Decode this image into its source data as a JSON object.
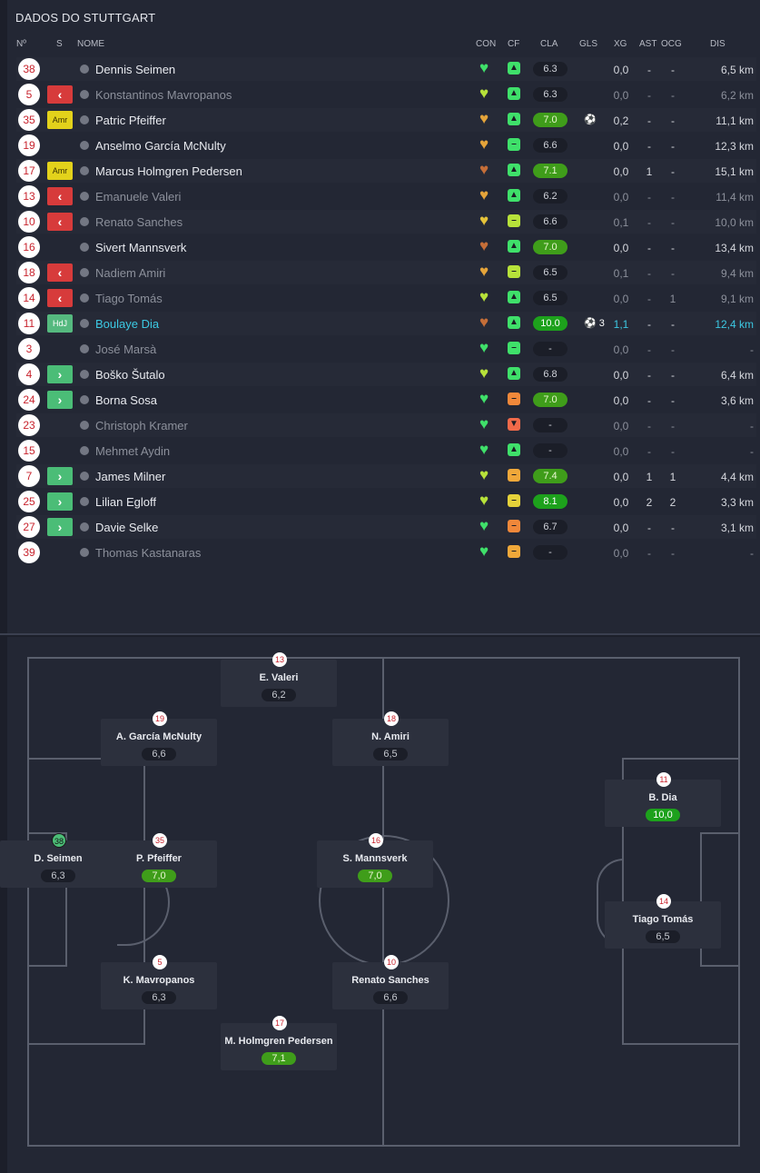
{
  "title": "DADOS DO STUTTGART",
  "headers": {
    "num": "Nº",
    "s": "S",
    "nome": "NOME",
    "con": "CON",
    "cf": "CF",
    "cla": "CLA",
    "gls": "GLS",
    "xg": "XG",
    "ast": "AST",
    "ocg": "OCG",
    "dis": "DIS"
  },
  "players": [
    {
      "num": "38",
      "status": "",
      "name": "Dennis Seimen",
      "con_color": "#3fe06a",
      "cf": "up",
      "cf_color": "#3fe06a",
      "cla": "6.3",
      "cla_style": "",
      "gls": "",
      "xg": "0,0",
      "ast": "-",
      "ocg": "-",
      "dis": "6,5 km",
      "dim": false,
      "hl": false
    },
    {
      "num": "5",
      "status": "out",
      "name": "Konstantinos Mavropanos",
      "con_color": "#b7e23a",
      "cf": "up",
      "cf_color": "#3fe06a",
      "cla": "6.3",
      "cla_style": "",
      "gls": "",
      "xg": "0,0",
      "ast": "-",
      "ocg": "-",
      "dis": "6,2 km",
      "dim": true,
      "hl": false
    },
    {
      "num": "35",
      "status": "yc",
      "status_text": "Amr",
      "name": "Patric Pfeiffer",
      "con_color": "#e5a43a",
      "cf": "up",
      "cf_color": "#3fe06a",
      "cla": "7.0",
      "cla_style": "good",
      "gls": "⚽",
      "xg": "0,2",
      "ast": "-",
      "ocg": "-",
      "dis": "11,1 km",
      "dim": false,
      "hl": false
    },
    {
      "num": "19",
      "status": "",
      "name": "Anselmo García McNulty",
      "con_color": "#e5a43a",
      "cf": "mid",
      "cf_color": "#3fe06a",
      "cla": "6.6",
      "cla_style": "",
      "gls": "",
      "xg": "0,0",
      "ast": "-",
      "ocg": "-",
      "dis": "12,3 km",
      "dim": false,
      "hl": false
    },
    {
      "num": "17",
      "status": "yc",
      "status_text": "Amr",
      "name": "Marcus Holmgren Pedersen",
      "con_color": "#c56e38",
      "cf": "up",
      "cf_color": "#3fe06a",
      "cla": "7.1",
      "cla_style": "good",
      "gls": "",
      "xg": "0,0",
      "ast": "1",
      "ocg": "-",
      "dis": "15,1 km",
      "dim": false,
      "hl": false
    },
    {
      "num": "13",
      "status": "out",
      "name": "Emanuele Valeri",
      "con_color": "#e5a43a",
      "cf": "up",
      "cf_color": "#3fe06a",
      "cla": "6.2",
      "cla_style": "",
      "gls": "",
      "xg": "0,0",
      "ast": "-",
      "ocg": "-",
      "dis": "11,4 km",
      "dim": true,
      "hl": false
    },
    {
      "num": "10",
      "status": "out",
      "name": "Renato Sanches",
      "con_color": "#e5c33a",
      "cf": "mid",
      "cf_color": "#b7e23a",
      "cla": "6.6",
      "cla_style": "",
      "gls": "",
      "xg": "0,1",
      "ast": "-",
      "ocg": "-",
      "dis": "10,0 km",
      "dim": true,
      "hl": false
    },
    {
      "num": "16",
      "status": "",
      "name": "Sivert Mannsverk",
      "con_color": "#c56e38",
      "cf": "up",
      "cf_color": "#3fe06a",
      "cla": "7.0",
      "cla_style": "good",
      "gls": "",
      "xg": "0,0",
      "ast": "-",
      "ocg": "-",
      "dis": "13,4 km",
      "dim": false,
      "hl": false
    },
    {
      "num": "18",
      "status": "out",
      "name": "Nadiem Amiri",
      "con_color": "#e5a43a",
      "cf": "mid",
      "cf_color": "#b7e23a",
      "cla": "6.5",
      "cla_style": "",
      "gls": "",
      "xg": "0,1",
      "ast": "-",
      "ocg": "-",
      "dis": "9,4 km",
      "dim": true,
      "hl": false
    },
    {
      "num": "14",
      "status": "out",
      "name": "Tiago Tomás",
      "con_color": "#b7e23a",
      "cf": "up",
      "cf_color": "#3fe06a",
      "cla": "6.5",
      "cla_style": "",
      "gls": "",
      "xg": "0,0",
      "ast": "-",
      "ocg": "1",
      "dis": "9,1 km",
      "dim": true,
      "hl": false
    },
    {
      "num": "11",
      "status": "hdj",
      "status_text": "HdJ",
      "name": "Boulaye Dia",
      "con_color": "#c56e38",
      "cf": "up",
      "cf_color": "#3fe06a",
      "cla": "10.0",
      "cla_style": "great",
      "gls": "⚽ 3",
      "xg": "1,1",
      "ast": "-",
      "ocg": "-",
      "dis": "12,4 km",
      "dim": false,
      "hl": true
    },
    {
      "num": "3",
      "status": "",
      "name": "José Marsà",
      "con_color": "#3fe06a",
      "cf": "mid",
      "cf_color": "#3fe06a",
      "cla": "-",
      "cla_style": "none",
      "gls": "",
      "xg": "0,0",
      "ast": "-",
      "ocg": "-",
      "dis": "-",
      "dim": true,
      "hl": false
    },
    {
      "num": "4",
      "status": "in",
      "name": "Boško Šutalo",
      "con_color": "#b7e23a",
      "cf": "up",
      "cf_color": "#3fe06a",
      "cla": "6.8",
      "cla_style": "",
      "gls": "",
      "xg": "0,0",
      "ast": "-",
      "ocg": "-",
      "dis": "6,4 km",
      "dim": false,
      "hl": false
    },
    {
      "num": "24",
      "status": "in",
      "name": "Borna Sosa",
      "con_color": "#3fe06a",
      "cf": "mid",
      "cf_color": "#f0883a",
      "cla": "7.0",
      "cla_style": "good",
      "gls": "",
      "xg": "0,0",
      "ast": "-",
      "ocg": "-",
      "dis": "3,6 km",
      "dim": false,
      "hl": false
    },
    {
      "num": "23",
      "status": "",
      "name": "Christoph Kramer",
      "con_color": "#3fe06a",
      "cf": "down",
      "cf_color": "#f06a4a",
      "cla": "-",
      "cla_style": "none",
      "gls": "",
      "xg": "0,0",
      "ast": "-",
      "ocg": "-",
      "dis": "-",
      "dim": true,
      "hl": false
    },
    {
      "num": "15",
      "status": "",
      "name": "Mehmet Aydin",
      "con_color": "#3fe06a",
      "cf": "up",
      "cf_color": "#3fe06a",
      "cla": "-",
      "cla_style": "none",
      "gls": "",
      "xg": "0,0",
      "ast": "-",
      "ocg": "-",
      "dis": "-",
      "dim": true,
      "hl": false
    },
    {
      "num": "7",
      "status": "in",
      "name": "James Milner",
      "con_color": "#b7e23a",
      "cf": "mid",
      "cf_color": "#f0a83a",
      "cla": "7.4",
      "cla_style": "good",
      "gls": "",
      "xg": "0,0",
      "ast": "1",
      "ocg": "1",
      "dis": "4,4 km",
      "dim": false,
      "hl": false
    },
    {
      "num": "25",
      "status": "in",
      "name": "Lilian Egloff",
      "con_color": "#b7e23a",
      "cf": "mid",
      "cf_color": "#e5d23a",
      "cla": "8.1",
      "cla_style": "great",
      "gls": "",
      "xg": "0,0",
      "ast": "2",
      "ocg": "2",
      "dis": "3,3 km",
      "dim": false,
      "hl": false
    },
    {
      "num": "27",
      "status": "in",
      "name": "Davie Selke",
      "con_color": "#3fe06a",
      "cf": "mid",
      "cf_color": "#f0883a",
      "cla": "6.7",
      "cla_style": "",
      "gls": "",
      "xg": "0,0",
      "ast": "-",
      "ocg": "-",
      "dis": "3,1 km",
      "dim": false,
      "hl": false
    },
    {
      "num": "39",
      "status": "",
      "name": "Thomas Kastanaras",
      "con_color": "#3fe06a",
      "cf": "mid",
      "cf_color": "#f0a83a",
      "cla": "-",
      "cla_style": "none",
      "gls": "",
      "xg": "0,0",
      "ast": "-",
      "ocg": "-",
      "dis": "-",
      "dim": true,
      "hl": false
    }
  ],
  "formation": [
    {
      "num": "13",
      "name": "E. Valeri",
      "rating": "6,2",
      "style": ""
    },
    {
      "num": "19",
      "name": "A. García McNulty",
      "rating": "6,6",
      "style": ""
    },
    {
      "num": "18",
      "name": "N. Amiri",
      "rating": "6,5",
      "style": ""
    },
    {
      "num": "11",
      "name": "B. Dia",
      "rating": "10,0",
      "style": "great"
    },
    {
      "num": "38",
      "name": "D. Seimen",
      "rating": "6,3",
      "style": "",
      "gk": true
    },
    {
      "num": "35",
      "name": "P. Pfeiffer",
      "rating": "7,0",
      "style": "good"
    },
    {
      "num": "16",
      "name": "S. Mannsverk",
      "rating": "7,0",
      "style": "good"
    },
    {
      "num": "14",
      "name": "Tiago Tomás",
      "rating": "6,5",
      "style": ""
    },
    {
      "num": "5",
      "name": "K. Mavropanos",
      "rating": "6,3",
      "style": ""
    },
    {
      "num": "10",
      "name": "Renato Sanches",
      "rating": "6,6",
      "style": ""
    },
    {
      "num": "17",
      "name": "M. Holmgren Pedersen",
      "rating": "7,1",
      "style": "good"
    }
  ]
}
